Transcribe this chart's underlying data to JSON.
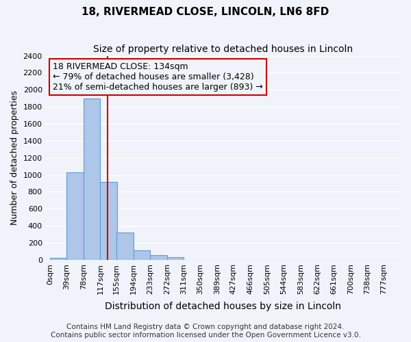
{
  "title": "18, RIVERMEAD CLOSE, LINCOLN, LN6 8FD",
  "subtitle": "Size of property relative to detached houses in Lincoln",
  "xlabel": "Distribution of detached houses by size in Lincoln",
  "ylabel": "Number of detached properties",
  "bar_labels": [
    "0sqm",
    "39sqm",
    "78sqm",
    "117sqm",
    "155sqm",
    "194sqm",
    "233sqm",
    "272sqm",
    "311sqm",
    "350sqm",
    "389sqm",
    "427sqm",
    "466sqm",
    "505sqm",
    "544sqm",
    "583sqm",
    "622sqm",
    "661sqm",
    "700sqm",
    "738sqm",
    "777sqm"
  ],
  "bar_values": [
    25,
    1025,
    1900,
    920,
    320,
    110,
    55,
    30,
    0,
    0,
    0,
    0,
    0,
    0,
    0,
    0,
    0,
    0,
    0,
    0,
    0
  ],
  "bar_color": "#aec6e8",
  "bar_edgecolor": "#5b9bd5",
  "bar_linewidth": 0.8,
  "property_line_x": 134,
  "bin_width": 39,
  "bin_starts": [
    0,
    39,
    78,
    117,
    155,
    194,
    233,
    272,
    311,
    350,
    389,
    427,
    466,
    505,
    544,
    583,
    622,
    661,
    700,
    738,
    777
  ],
  "ylim": [
    0,
    2400
  ],
  "yticks": [
    0,
    200,
    400,
    600,
    800,
    1000,
    1200,
    1400,
    1600,
    1800,
    2000,
    2200,
    2400
  ],
  "annotation_title": "18 RIVERMEAD CLOSE: 134sqm",
  "annotation_line1": "← 79% of detached houses are smaller (3,428)",
  "annotation_line2": "21% of semi-detached houses are larger (893) →",
  "annotation_box_color": "#cc0000",
  "vline_color": "#cc0000",
  "footer_line1": "Contains HM Land Registry data © Crown copyright and database right 2024.",
  "footer_line2": "Contains public sector information licensed under the Open Government Licence v3.0.",
  "background_color": "#f0f4fa",
  "grid_color": "#ffffff",
  "title_fontsize": 11,
  "subtitle_fontsize": 10,
  "xlabel_fontsize": 10,
  "ylabel_fontsize": 9,
  "tick_fontsize": 8,
  "annotation_fontsize": 9,
  "footer_fontsize": 7.5
}
